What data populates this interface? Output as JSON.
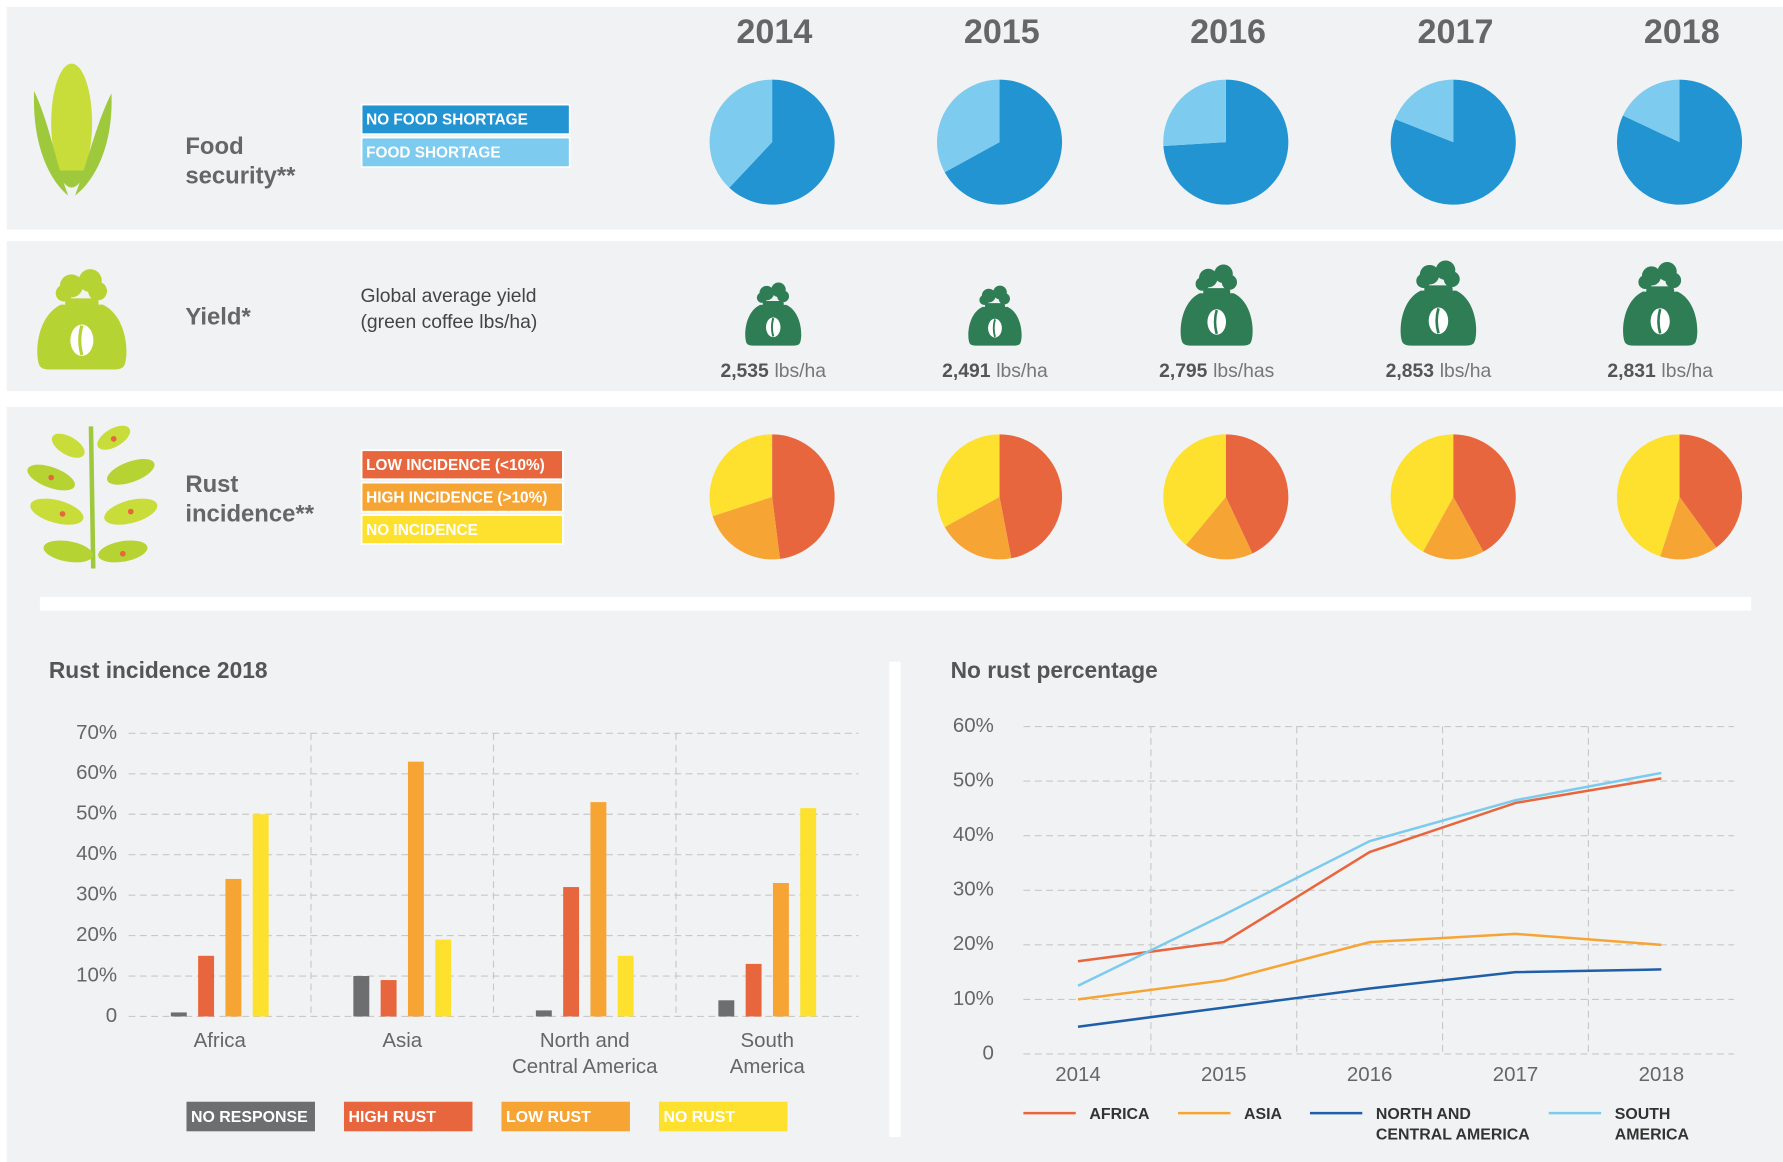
{
  "chart_data": [
    {
      "type": "pie",
      "title_lines": [
        "Food",
        "security**"
      ],
      "categories": [
        "2014",
        "2015",
        "2016",
        "2017",
        "2018"
      ],
      "series": [
        {
          "name": "NO FOOD SHORTAGE",
          "color": "#2394d2",
          "values": [
            62,
            67,
            74,
            81,
            82
          ]
        },
        {
          "name": "FOOD SHORTAGE",
          "color": "#7ecbf0",
          "values": [
            38,
            33,
            26,
            19,
            18
          ]
        }
      ]
    },
    {
      "type": "pictogram",
      "title": "Yield*",
      "subtitle_lines": [
        "Global average yield",
        "(green coffee lbs/ha)"
      ],
      "values": [
        2535,
        2491,
        2795,
        2853,
        2831
      ],
      "value_labels": [
        "2,535",
        "2,491",
        "2,795",
        "2,853",
        "2,831"
      ],
      "units": [
        "lbs/ha",
        "lbs/ha",
        "lbs/has",
        "lbs/ha",
        "lbs/ha"
      ],
      "color": "#2e7d55"
    },
    {
      "type": "pie",
      "title_lines": [
        "Rust",
        "incidence**"
      ],
      "series": [
        {
          "name": "LOW INCIDENCE (<10%)",
          "color": "#e8663d",
          "values": [
            48,
            47,
            43,
            42,
            40
          ]
        },
        {
          "name": "HIGH INCIDENCE (>10%)",
          "color": "#f6a535",
          "values": [
            22,
            20,
            18,
            16,
            15
          ]
        },
        {
          "name": "NO INCIDENCE",
          "color": "#fde12e",
          "values": [
            30,
            33,
            39,
            42,
            45
          ]
        }
      ]
    },
    {
      "type": "bar",
      "title": "Rust incidence 2018",
      "categories": [
        [
          "Africa"
        ],
        [
          "Asia"
        ],
        [
          "North and",
          "Central America"
        ],
        [
          "South",
          "America"
        ]
      ],
      "series": [
        {
          "name": "NO RESPONSE",
          "color": "#6d6e70",
          "values": [
            1,
            10,
            1.5,
            4
          ]
        },
        {
          "name": "HIGH RUST",
          "color": "#e8663d",
          "values": [
            15,
            9,
            32,
            13
          ]
        },
        {
          "name": "LOW RUST",
          "color": "#f6a535",
          "values": [
            34,
            63,
            53,
            33
          ]
        },
        {
          "name": "NO RUST",
          "color": "#fde12e",
          "values": [
            50,
            19,
            15,
            51.5
          ]
        }
      ],
      "ylim": [
        0,
        70
      ],
      "yticks": [
        0,
        {
          "value": 10,
          "label": "10%"
        },
        {
          "value": 20,
          "label": "20%"
        },
        {
          "value": 30,
          "label": "30%"
        },
        {
          "value": 40,
          "label": "40%"
        },
        {
          "value": 50,
          "label": "50%"
        },
        {
          "value": 60,
          "label": "60%"
        },
        {
          "value": 70,
          "label": "70%"
        }
      ],
      "grid": true
    },
    {
      "type": "line",
      "title": "No rust percentage",
      "categories": [
        "2014",
        "2015",
        "2016",
        "2017",
        "2018"
      ],
      "series": [
        {
          "name": "AFRICA",
          "color": "#e8663d",
          "values": [
            17,
            20.5,
            37,
            46,
            50.5
          ]
        },
        {
          "name": "ASIA",
          "color": "#f6a535",
          "values": [
            10,
            13.5,
            20.5,
            22,
            20
          ]
        },
        {
          "name": "NORTH AND CENTRAL AMERICA",
          "color": "#1f5fa8",
          "values": [
            5,
            8.5,
            12,
            15,
            15.5
          ]
        },
        {
          "name": "SOUTH AMERICA",
          "color": "#7ccbee",
          "values": [
            12.5,
            25.5,
            39,
            46.5,
            51.5
          ]
        }
      ],
      "ylim": [
        0,
        60
      ],
      "yticks": [
        0,
        {
          "value": 10,
          "label": "10%"
        },
        {
          "value": 20,
          "label": "20%"
        },
        {
          "value": 30,
          "label": "30%"
        },
        {
          "value": 40,
          "label": "40%"
        },
        {
          "value": 50,
          "label": "50%"
        },
        {
          "value": 60,
          "label": "60%"
        }
      ],
      "grid": true
    }
  ]
}
